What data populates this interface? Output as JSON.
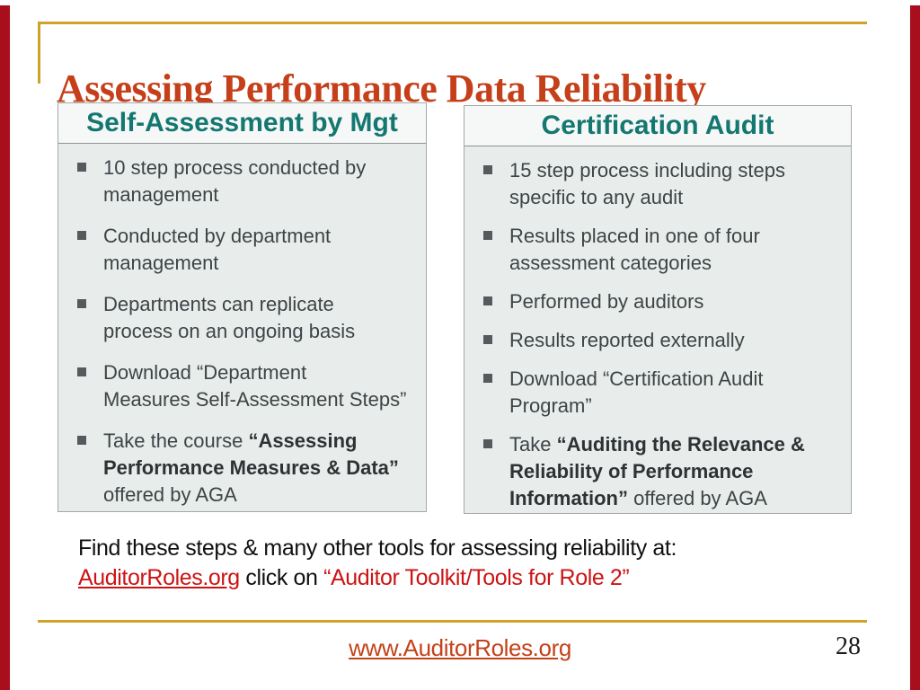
{
  "slide": {
    "title": "Assessing Performance Data Reliability",
    "page_number": "28",
    "footer_link": "www.AuditorRoles.org"
  },
  "columns": [
    {
      "header": "Self-Assessment by Mgt",
      "bullets": [
        [
          {
            "t": "10 step process conducted by\nmanagement"
          }
        ],
        [
          {
            "t": "Conducted by department\nmanagement"
          }
        ],
        [
          {
            "t": "Departments can replicate\nprocess on an ongoing basis"
          }
        ],
        [
          {
            "t": "Download “Department\nMeasures Self-Assessment Steps”"
          }
        ],
        [
          {
            "t": "Take the course "
          },
          {
            "t": "“Assessing\nPerformance Measures & Data”",
            "b": true
          },
          {
            "t": "\noffered by AGA"
          }
        ]
      ]
    },
    {
      "header": "Certification Audit",
      "bullets": [
        [
          {
            "t": "15 step process including steps\nspecific to any audit"
          }
        ],
        [
          {
            "t": "Results placed in one of four\nassessment categories"
          }
        ],
        [
          {
            "t": "Performed by auditors"
          }
        ],
        [
          {
            "t": "Results reported externally"
          }
        ],
        [
          {
            "t": "Download “Certification Audit\nProgram”"
          }
        ],
        [
          {
            "t": "Take "
          },
          {
            "t": "“Auditing the Relevance &\nReliability of Performance\nInformation”",
            "b": true
          },
          {
            "t": " offered by AGA"
          }
        ]
      ]
    }
  ],
  "note": {
    "line1": "Find these steps & many other tools for assessing reliability at:",
    "link": "AuditorRoles.org",
    "middle": " click on ",
    "quote": "“Auditor Toolkit/Tools for Role 2”"
  },
  "colors": {
    "accent_bar": "#A90E1C",
    "gold_rule": "#D0A12B",
    "title": "#C5401A",
    "header_teal": "#147771",
    "box_background": "#E8EDEC",
    "note_red": "#CC1414",
    "footer_link": "#C5411A"
  }
}
